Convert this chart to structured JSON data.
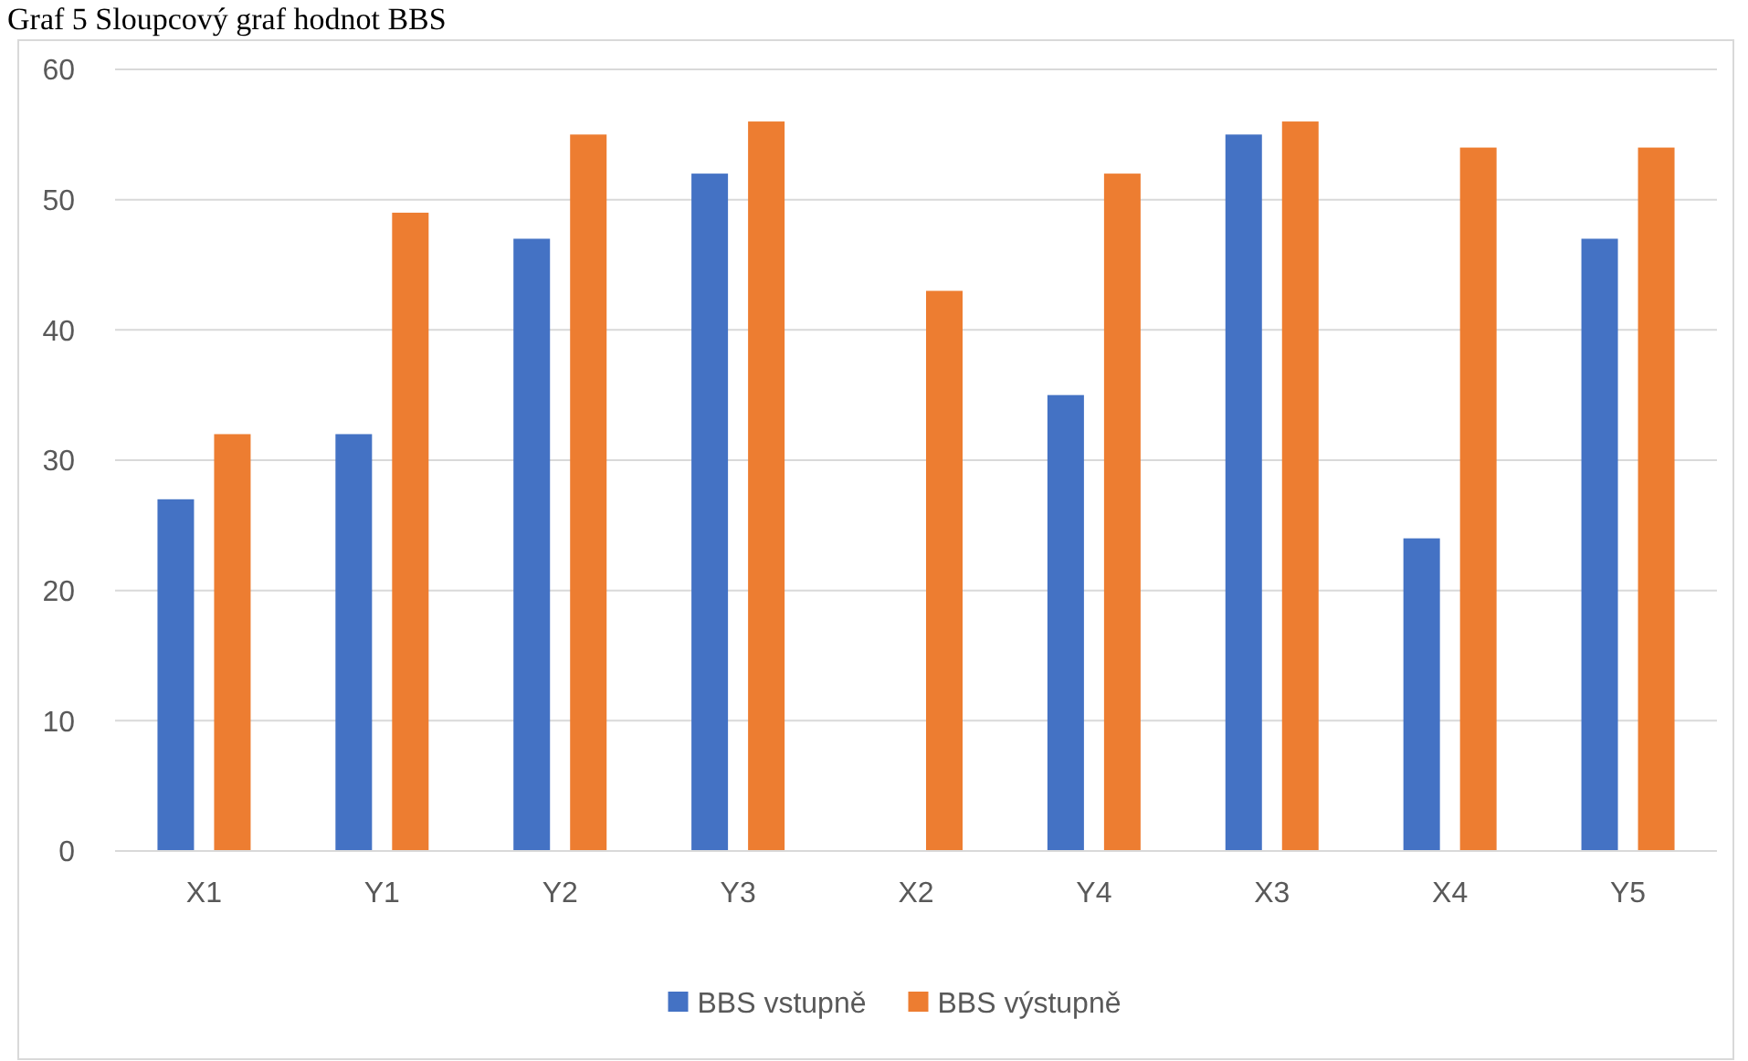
{
  "chart_data": {
    "type": "bar",
    "title": "Graf 5 Sloupcový graf hodnot BBS",
    "categories": [
      "X1",
      "Y1",
      "Y2",
      "Y3",
      "X2",
      "Y4",
      "X3",
      "X4",
      "Y5"
    ],
    "series": [
      {
        "name": "BBS vstupně",
        "color": "#4472c4",
        "values": [
          27,
          32,
          47,
          52,
          null,
          35,
          55,
          24,
          47
        ]
      },
      {
        "name": "BBS výstupně",
        "color": "#ed7d31",
        "values": [
          32,
          49,
          55,
          56,
          43,
          52,
          56,
          54,
          54
        ]
      }
    ],
    "ylim": [
      0,
      60
    ],
    "yticks": [
      0,
      10,
      20,
      30,
      40,
      50,
      60
    ],
    "grid": "y",
    "legend": "bottom"
  }
}
